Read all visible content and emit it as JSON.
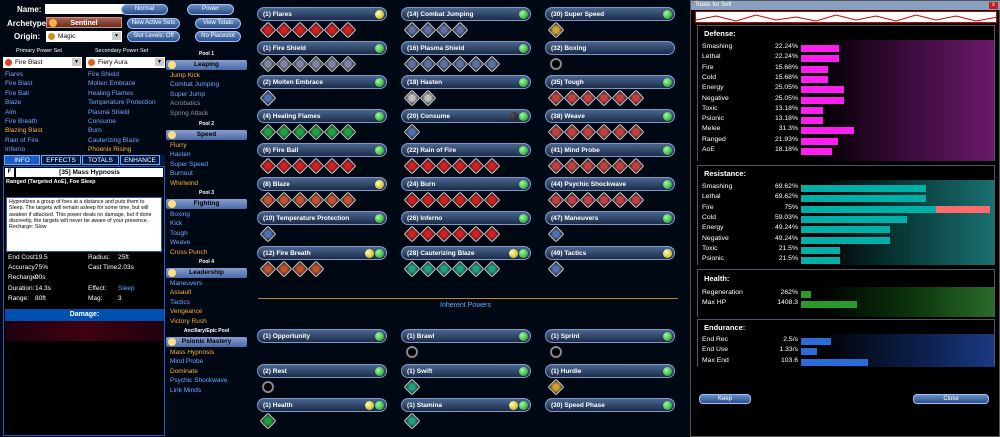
{
  "header": {
    "name_label": "Name:",
    "name_value": "",
    "normal_btn": "Normal",
    "power_btn": "Power",
    "archetype_label": "Archetype:",
    "archetype_value": "Sentinel",
    "origin_label": "Origin:",
    "origin_value": "Magic",
    "new_active_sets": "New Active Sets",
    "view_totals": "View Totals",
    "slot_levels_off": "Slot Levels: Off",
    "no_placeslot": "No Placeslot"
  },
  "powersets": {
    "primary_label": "Primary Power Set",
    "primary_value": "Fire Blast",
    "secondary_label": "Secondary Power Set",
    "secondary_value": "Fiery Aura",
    "primary": [
      "Flares",
      "Fire Blast",
      "Fire Ball",
      "Blaze",
      "Aim",
      "Fire Breath",
      "Blazing Blast",
      "Rain of Fire",
      "Inferno"
    ],
    "primary_colors": [
      "#6fa8ff",
      "#6fa8ff",
      "#6fa8ff",
      "#6fa8ff",
      "#6fa8ff",
      "#6fa8ff",
      "#ffb030",
      "#6fa8ff",
      "#6fa8ff"
    ],
    "secondary": [
      "Fire Shield",
      "Molten Embrace",
      "Healing Flames",
      "Temperature Protection",
      "Plasma Shield",
      "Consume",
      "Burn",
      "Cauterizing Blaze",
      "Phoenix Rising"
    ],
    "secondary_colors": [
      "#6fa8ff",
      "#6fa8ff",
      "#6fa8ff",
      "#6fa8ff",
      "#6fa8ff",
      "#6fa8ff",
      "#6fa8ff",
      "#6fa8ff",
      "#ffb030"
    ]
  },
  "pools": [
    {
      "label": "Pool 1",
      "name": "Leaping",
      "items": [
        "Jump Kick",
        "Combat Jumping",
        "Super Jump",
        "Acrobatics",
        "Spring Attack"
      ],
      "colors": [
        "#ffb030",
        "#6fa8ff",
        "#6fa8ff",
        "#8a93a8",
        "#8a93a8"
      ]
    },
    {
      "label": "Pool 2",
      "name": "Speed",
      "items": [
        "Flurry",
        "Hasten",
        "Super Speed",
        "Burnout",
        "Whirlwind"
      ],
      "colors": [
        "#ffb030",
        "#6fa8ff",
        "#6fa8ff",
        "#6fa8ff",
        "#ffb030"
      ]
    },
    {
      "label": "Pool 3",
      "name": "Fighting",
      "items": [
        "Boxing",
        "Kick",
        "Tough",
        "Weave",
        "Cross Punch"
      ],
      "colors": [
        "#6fa8ff",
        "#6fa8ff",
        "#6fa8ff",
        "#6fa8ff",
        "#ffb030"
      ]
    },
    {
      "label": "Pool 4",
      "name": "Leadership",
      "items": [
        "Maneuvers",
        "Assault",
        "Tactics",
        "Vengeance",
        "Victory Rush"
      ],
      "colors": [
        "#6fa8ff",
        "#ffb030",
        "#6fa8ff",
        "#ffb030",
        "#ffb030"
      ]
    },
    {
      "label": "Ancillary/Epic Pool",
      "name": "Psionic Mastery",
      "items": [
        "Mass Hypnosis",
        "Mind Probe",
        "Dominate",
        "Psychic Shockwave",
        "Link Minds"
      ],
      "colors": [
        "#ffb030",
        "#6fa8ff",
        "#ffb030",
        "#6fa8ff",
        "#6fa8ff"
      ]
    }
  ],
  "info": {
    "tabs": [
      "INFO",
      "EFFECTS",
      "TOTALS",
      "ENHANCE"
    ],
    "f_btn": "F",
    "power_title": "[35] Mass Hypnosis",
    "power_type": "Ranged (Targeted AoE), Foe Sleep",
    "description": "Hypnotizes a group of foes at a distance and puts them to Sleep. The targets will remain asleep for some time, but will awaken if attacked. This power deals no damage, but if done discreetly, the targets will never be aware of your presence. Recharge: Slow",
    "stats": [
      [
        "End Cost:",
        "19.5",
        "Radius:",
        "25ft"
      ],
      [
        "Accuracy:",
        "75%",
        "Cast Time:",
        "2.03s"
      ],
      [
        "Recharge:",
        "90s",
        "",
        ""
      ],
      [
        "Duration:",
        "14.3s",
        "Effect:",
        "Sleep"
      ],
      [
        "Range:",
        "80ft",
        "Mag:",
        "3"
      ]
    ],
    "damage_label": "Damage:"
  },
  "build": {
    "col1": [
      {
        "name": "(1) Flares",
        "n": 6,
        "c": "#d02020",
        "dots": [
          "y"
        ]
      },
      {
        "name": "(1) Fire Shield",
        "n": 6,
        "c": "#8088a0",
        "dots": [
          "g"
        ]
      },
      {
        "name": "(2) Molten Embrace",
        "n": 1,
        "c": "#5070b0",
        "dots": [
          "g"
        ]
      },
      {
        "name": "(4) Healing Flames",
        "n": 6,
        "c": "#20a040",
        "dots": [
          "g"
        ]
      },
      {
        "name": "(6) Fire Ball",
        "n": 6,
        "c": "#d02020",
        "dots": [
          "g"
        ]
      },
      {
        "name": "(8) Blaze",
        "n": 6,
        "c": "#c05030",
        "dots": [
          "y"
        ]
      },
      {
        "name": "(10) Temperature Protection",
        "n": 1,
        "c": "#5070b0",
        "dots": [
          "g"
        ]
      },
      {
        "name": "(12) Fire Breath",
        "n": 4,
        "c": "#c05030",
        "dots": [
          "y",
          "g"
        ]
      }
    ],
    "col2": [
      {
        "name": "(14) Combat Jumping",
        "n": 4,
        "c": "#6070a0",
        "dots": [
          "g"
        ]
      },
      {
        "name": "(16) Plasma Shield",
        "n": 6,
        "c": "#6070a0",
        "dots": [
          "g"
        ]
      },
      {
        "name": "(18) Hasten",
        "n": 2,
        "c": "#c0c0c0",
        "dots": [
          "g"
        ]
      },
      {
        "name": "(20) Consume",
        "n": 1,
        "c": "#5070b0",
        "dots": [
          "k",
          "g"
        ]
      },
      {
        "name": "(22) Rain of Fire",
        "n": 6,
        "c": "#d02020",
        "dots": [
          "g"
        ]
      },
      {
        "name": "(24) Burn",
        "n": 6,
        "c": "#d02020",
        "dots": [
          "g"
        ]
      },
      {
        "name": "(26) Inferno",
        "n": 6,
        "c": "#d02020",
        "dots": [
          "g"
        ]
      },
      {
        "name": "(28) Cauterizing Blaze",
        "n": 6,
        "c": "#20a080",
        "dots": [
          "y",
          "g"
        ]
      }
    ],
    "col3": [
      {
        "name": "(30) Super Speed",
        "n": 1,
        "c": "#d0a030",
        "dots": [
          "g"
        ]
      },
      {
        "name": "(32) Boxing",
        "n": 0,
        "c": "#000",
        "dots": []
      },
      {
        "name": "(35) Tough",
        "n": 6,
        "c": "#c04040",
        "dots": [
          "g"
        ]
      },
      {
        "name": "(38) Weave",
        "n": 6,
        "c": "#c04040",
        "dots": [
          "g"
        ]
      },
      {
        "name": "(41) Mind Probe",
        "n": 6,
        "c": "#c04040",
        "dots": [
          "g"
        ]
      },
      {
        "name": "(44) Psychic Shockwave",
        "n": 6,
        "c": "#c04040",
        "dots": [
          "g"
        ]
      },
      {
        "name": "(47) Maneuvers",
        "n": 1,
        "c": "#5070b0",
        "dots": [
          "g"
        ]
      },
      {
        "name": "(49) Tactics",
        "n": 1,
        "c": "#5070b0",
        "dots": [
          "y"
        ]
      }
    ],
    "inherent_label": "Inherent Powers",
    "inh1": [
      {
        "name": "(1) Opportunity",
        "n": 0,
        "c": "#000",
        "dots": [
          "g"
        ]
      },
      {
        "name": "(2) Rest",
        "n": 0,
        "ring": true,
        "c": "#000",
        "dots": [
          "g"
        ]
      },
      {
        "name": "(1) Health",
        "n": 1,
        "c": "#20a040",
        "dots": [
          "y",
          "g"
        ]
      }
    ],
    "inh2": [
      {
        "name": "(1) Brawl",
        "n": 0,
        "ring": true,
        "c": "#000",
        "dots": [
          "g"
        ]
      },
      {
        "name": "(1) Swift",
        "n": 1,
        "c": "#20a080",
        "dots": [
          "g"
        ]
      },
      {
        "name": "(1) Stamina",
        "n": 1,
        "c": "#20a080",
        "dots": [
          "y",
          "g"
        ]
      }
    ],
    "inh3": [
      {
        "name": "(1) Sprint",
        "n": 0,
        "ring": true,
        "c": "#000",
        "dots": [
          "g"
        ]
      },
      {
        "name": "(1) Hurdle",
        "n": 1,
        "c": "#d0a030",
        "dots": [
          "g"
        ]
      },
      {
        "name": "(30) Speed Phase",
        "n": 0,
        "c": "#000",
        "dots": [
          "g"
        ]
      }
    ]
  },
  "totals": {
    "window_title": "Totals for Self",
    "close": "x",
    "defense_label": "Defense:",
    "defense": [
      [
        "Smashing",
        "22.24%",
        22.24
      ],
      [
        "Lethal",
        "22.24%",
        22.24
      ],
      [
        "Fire",
        "15.68%",
        15.68
      ],
      [
        "Cold",
        "15.68%",
        15.68
      ],
      [
        "Energy",
        "25.05%",
        25.05
      ],
      [
        "Negative",
        "25.05%",
        25.05
      ],
      [
        "Toxic",
        "13.18%",
        13.18
      ],
      [
        "Psionic",
        "13.18%",
        13.18
      ],
      [
        "Melee",
        "31.3%",
        31.3
      ],
      [
        "Ranged",
        "21.93%",
        21.93
      ],
      [
        "AoE",
        "18.18%",
        18.18
      ]
    ],
    "resistance_label": "Resistance:",
    "resistance": [
      [
        "Smashing",
        "69.62%",
        69.62
      ],
      [
        "Lethal",
        "69.62%",
        69.62
      ],
      [
        "Fire",
        "75%",
        75
      ],
      [
        "Cold",
        "59.03%",
        59.03
      ],
      [
        "Energy",
        "49.24%",
        49.24
      ],
      [
        "Negative",
        "49.24%",
        49.24
      ],
      [
        "Toxic",
        "21.5%",
        21.5
      ],
      [
        "Psionic",
        "21.5%",
        21.5
      ]
    ],
    "health_label": "Health:",
    "health": [
      [
        "Regeneration",
        "262%",
        0.07
      ],
      [
        "Max HP",
        "1408.3",
        0.4
      ]
    ],
    "endurance_label": "Endurance:",
    "endurance": [
      [
        "End Rec",
        "2.5/s",
        0.19
      ],
      [
        "End Use",
        "1.33/s",
        0.1
      ],
      [
        "Max End",
        "103.6",
        0.42
      ]
    ],
    "keep_btn": "Keep",
    "close_btn": "Close"
  },
  "colors": {
    "defense_bar": "#ff1ef0",
    "resist_bar": "#00b0a8",
    "health_bar": "#2a9a2a",
    "end_bar": "#2a6cd8",
    "fire_over": "#ff6a6a"
  }
}
